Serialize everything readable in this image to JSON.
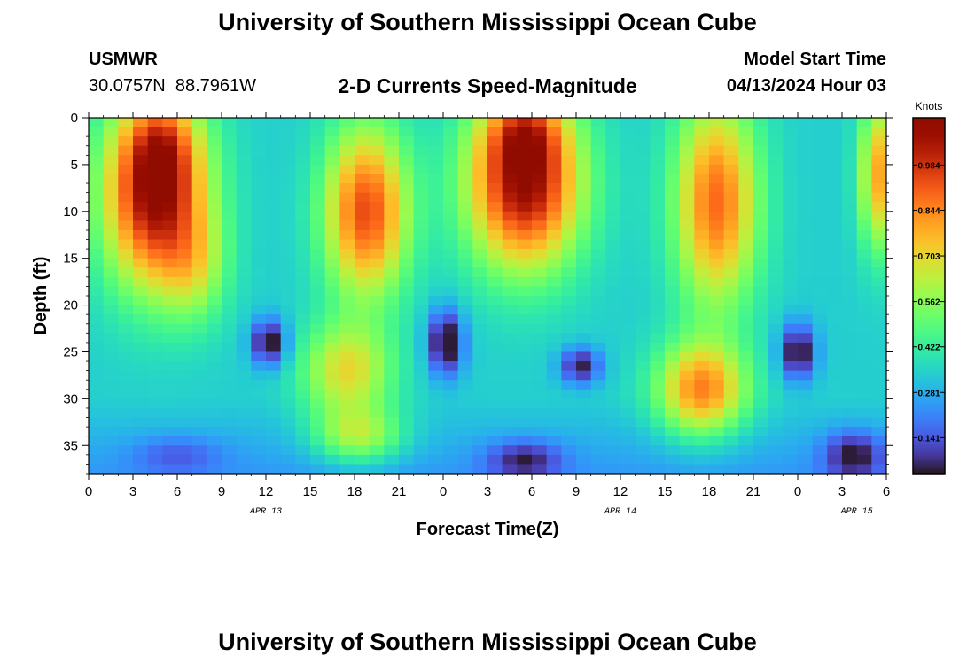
{
  "header": {
    "title": "University of Southern Mississippi Ocean Cube",
    "station_name": "USMWR",
    "station_coords": "30.0757N  88.7961W",
    "subtitle": "2-D Currents Speed-Magnitude",
    "model_start_label": "Model Start Time",
    "model_start_value": "04/13/2024 Hour 03"
  },
  "footer": {
    "title": "University of Southern Mississippi Ocean Cube"
  },
  "chart_data": {
    "type": "heatmap",
    "title": "2-D Currents Speed-Magnitude",
    "xlabel": "Forecast Time(Z)",
    "ylabel": "Depth (ft)",
    "x_ticks": [
      "0",
      "3",
      "6",
      "9",
      "12",
      "15",
      "18",
      "21",
      "0",
      "3",
      "6",
      "9",
      "12",
      "15",
      "18",
      "21",
      "0",
      "3",
      "6"
    ],
    "x_range_hours": [
      0,
      54
    ],
    "day_labels": [
      {
        "label": "APR 13",
        "hour": 12
      },
      {
        "label": "APR 14",
        "hour": 36
      },
      {
        "label": "APR 15",
        "hour": 52
      }
    ],
    "y_ticks": [
      0,
      5,
      10,
      15,
      20,
      25,
      30,
      35
    ],
    "y_range_ft": [
      0,
      38
    ],
    "y_inverted": true,
    "colorbar": {
      "unit_label": "Knots",
      "tick_labels": [
        "0.984",
        "0.844",
        "0.703",
        "0.562",
        "0.422",
        "0.281",
        "0.141"
      ],
      "tick_values": [
        0.984,
        0.844,
        0.703,
        0.562,
        0.422,
        0.281,
        0.141
      ],
      "range": [
        0.03,
        1.13
      ],
      "colormap": "turbo"
    },
    "grid": {
      "time_step_hours": 1,
      "depth_step_ft": 1
    },
    "features": [
      {
        "t": 4.5,
        "d": 8,
        "st": 3.5,
        "sd": 10,
        "v": 0.75,
        "kind": "high"
      },
      {
        "t": 5,
        "d": 3,
        "st": 2.2,
        "sd": 5,
        "v": 0.2,
        "kind": "high"
      },
      {
        "t": 7.2,
        "d": 16,
        "st": 2.2,
        "sd": 6,
        "v": 0.2,
        "kind": "high"
      },
      {
        "t": 18.8,
        "d": 10,
        "st": 2.8,
        "sd": 9,
        "v": 0.6,
        "kind": "high"
      },
      {
        "t": 17.5,
        "d": 27,
        "st": 3,
        "sd": 5,
        "v": 0.35,
        "kind": "high"
      },
      {
        "t": 18.3,
        "d": 34,
        "st": 3,
        "sd": 3,
        "v": 0.3,
        "kind": "high"
      },
      {
        "t": 29.5,
        "d": 7,
        "st": 3.8,
        "sd": 9,
        "v": 0.75,
        "kind": "high"
      },
      {
        "t": 29.5,
        "d": 1.5,
        "st": 2.5,
        "sd": 4,
        "v": 0.25,
        "kind": "high"
      },
      {
        "t": 42.5,
        "d": 9,
        "st": 2.8,
        "sd": 11,
        "v": 0.55,
        "kind": "high"
      },
      {
        "t": 41.5,
        "d": 29,
        "st": 3,
        "sd": 5,
        "v": 0.5,
        "kind": "high"
      },
      {
        "t": 53.5,
        "d": 6,
        "st": 1.3,
        "sd": 8,
        "v": 0.45,
        "kind": "high"
      },
      {
        "t": 12.2,
        "d": 24,
        "st": 1.2,
        "sd": 2.5,
        "v": 0.35,
        "kind": "low"
      },
      {
        "t": 24.2,
        "d": 24,
        "st": 1.2,
        "sd": 3.5,
        "v": 0.38,
        "kind": "low"
      },
      {
        "t": 33.3,
        "d": 26.5,
        "st": 1.4,
        "sd": 2,
        "v": 0.3,
        "kind": "low"
      },
      {
        "t": 48,
        "d": 25,
        "st": 1.2,
        "sd": 3,
        "v": 0.35,
        "kind": "low"
      },
      {
        "t": 29.5,
        "d": 36.5,
        "st": 2.5,
        "sd": 2,
        "v": 0.22,
        "kind": "low"
      },
      {
        "t": 51.8,
        "d": 36,
        "st": 2,
        "sd": 2.5,
        "v": 0.25,
        "kind": "low"
      },
      {
        "t": 6,
        "d": 36,
        "st": 3,
        "sd": 2,
        "v": 0.12,
        "kind": "low"
      }
    ]
  }
}
